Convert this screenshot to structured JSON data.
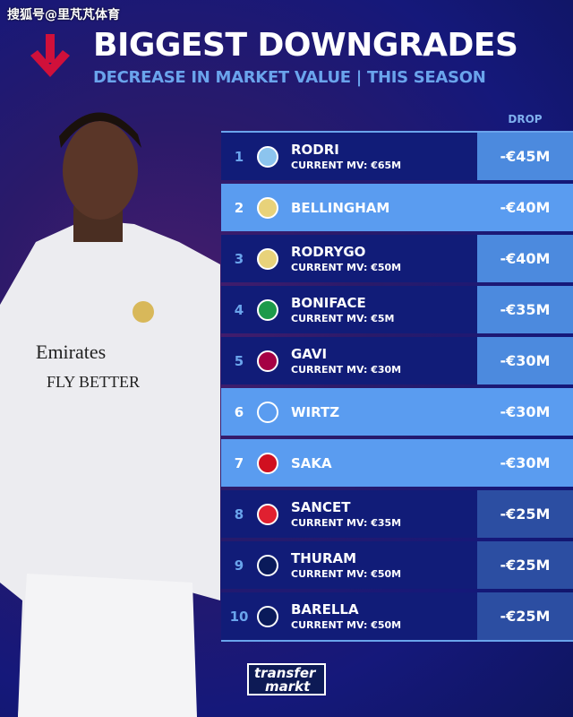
{
  "watermark": "搜狐号@里芃芃体育",
  "header": {
    "title": "BIGGEST DOWNGRADES",
    "subtitle": "DECREASE IN MARKET VALUE | THIS SEASON",
    "arrow_icon": "down-arrow-icon",
    "arrow_color": "#d0103a"
  },
  "table": {
    "drop_header": "DROP",
    "rows": [
      {
        "rank": "1",
        "name": "RODRI",
        "mv": "CURRENT MV: €65M",
        "drop": "-€45M",
        "club_icon": "man-city-crest-icon",
        "style": "dark",
        "drop_tone": "hi"
      },
      {
        "rank": "2",
        "name": "BELLINGHAM",
        "mv": null,
        "drop": "-€40M",
        "club_icon": "real-madrid-crest-icon",
        "style": "light",
        "drop_tone": "hi"
      },
      {
        "rank": "3",
        "name": "RODRYGO",
        "mv": "CURRENT MV: €50M",
        "drop": "-€40M",
        "club_icon": "real-madrid-crest-icon",
        "style": "dark",
        "drop_tone": "hi"
      },
      {
        "rank": "4",
        "name": "BONIFACE",
        "mv": "CURRENT MV: €5M",
        "drop": "-€35M",
        "club_icon": "werder-bremen-crest-icon",
        "style": "dark",
        "drop_tone": "hi"
      },
      {
        "rank": "5",
        "name": "GAVI",
        "mv": "CURRENT MV: €30M",
        "drop": "-€30M",
        "club_icon": "barcelona-crest-icon",
        "style": "dark",
        "drop_tone": "hi"
      },
      {
        "rank": "6",
        "name": "WIRTZ",
        "mv": null,
        "drop": "-€30M",
        "club_icon": "liverpool-crest-icon",
        "style": "light",
        "drop_tone": "hi"
      },
      {
        "rank": "7",
        "name": "SAKA",
        "mv": null,
        "drop": "-€30M",
        "club_icon": "arsenal-crest-icon",
        "style": "light",
        "drop_tone": "hi"
      },
      {
        "rank": "8",
        "name": "SANCET",
        "mv": "CURRENT MV: €35M",
        "drop": "-€25M",
        "club_icon": "athletic-bilbao-crest-icon",
        "style": "dark",
        "drop_tone": "lo"
      },
      {
        "rank": "9",
        "name": "THURAM",
        "mv": "CURRENT MV: €50M",
        "drop": "-€25M",
        "club_icon": "inter-crest-icon",
        "style": "dark",
        "drop_tone": "lo"
      },
      {
        "rank": "10",
        "name": "BARELLA",
        "mv": "CURRENT MV: €50M",
        "drop": "-€25M",
        "club_icon": "inter-crest-icon",
        "style": "dark",
        "drop_tone": "lo"
      }
    ]
  },
  "footer": {
    "logo_line1": "transfer",
    "logo_line2": "markt"
  },
  "player_shirt": {
    "sponsor_line1": "Emirates",
    "sponsor_line2": "FLY BETTER"
  }
}
